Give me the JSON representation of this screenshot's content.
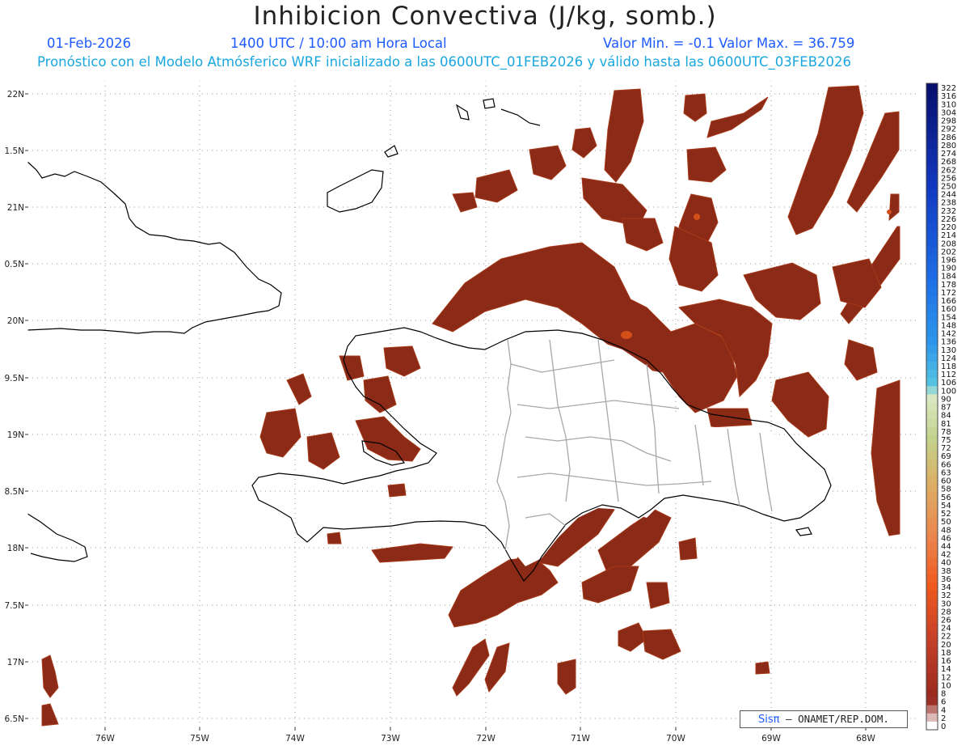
{
  "header": {
    "title": "Inhibicion Convectiva (J/kg, somb.)",
    "date": "01-Feb-2026",
    "time": "1400 UTC / 10:00 am Hora Local",
    "min_max": "Valor Min. = -0.1  Valor Max. = 36.759",
    "forecast_line": "Pronóstico con el Modelo Atmósferico WRF inicializado a las 0600UTC_01FEB2026 y válido hasta las  0600UTC_03FEB2026"
  },
  "map": {
    "lat_labels": [
      "22N",
      "1.5N",
      "21N",
      "0.5N",
      "20N",
      "9.5N",
      "19N",
      "8.5N",
      "18N",
      "7.5N",
      "17N",
      "6.5N"
    ],
    "lon_labels": [
      "76W",
      "75W",
      "74W",
      "73W",
      "72W",
      "71W",
      "70W",
      "69W",
      "68W"
    ],
    "shading_color": "#8b2a16",
    "shading_edge_color": "#a73a1a",
    "hotspot_color": "#d24f1a",
    "coastline_color": "#000000",
    "province_border_color": "#a8a8a8"
  },
  "colorbar": {
    "labels": [
      "322",
      "316",
      "310",
      "304",
      "298",
      "292",
      "286",
      "280",
      "274",
      "268",
      "262",
      "256",
      "250",
      "244",
      "238",
      "232",
      "226",
      "220",
      "214",
      "208",
      "202",
      "196",
      "190",
      "184",
      "178",
      "172",
      "166",
      "160",
      "154",
      "148",
      "142",
      "136",
      "130",
      "124",
      "118",
      "112",
      "106",
      "100",
      "90",
      "87",
      "84",
      "81",
      "78",
      "75",
      "72",
      "69",
      "66",
      "63",
      "60",
      "58",
      "56",
      "54",
      "52",
      "50",
      "48",
      "46",
      "44",
      "42",
      "40",
      "38",
      "36",
      "34",
      "32",
      "30",
      "28",
      "26",
      "24",
      "22",
      "20",
      "18",
      "16",
      "14",
      "12",
      "10",
      "8",
      "6",
      "4",
      "2",
      "0"
    ]
  },
  "credit": {
    "brand": "Sisπ",
    "text": " – ONAMET/REP.DOM."
  }
}
